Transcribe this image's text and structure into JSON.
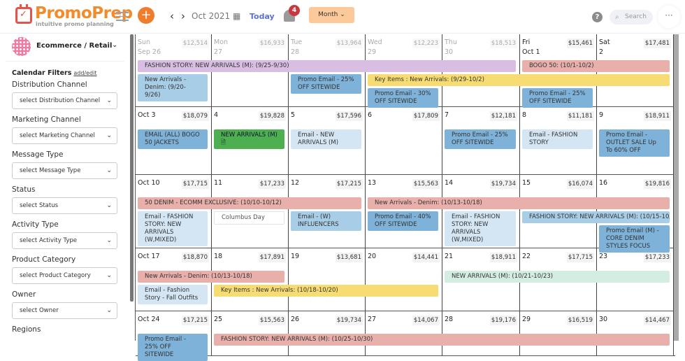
{
  "header": {
    "brand": "PromoPrep",
    "tagline": "intuitive promo planning",
    "prev": "‹",
    "next": "›",
    "month": "Oct 2021",
    "today": "Today",
    "notifications": "4",
    "view": "Month",
    "help": "?",
    "search_placeholder": "Search",
    "more": "···"
  },
  "sidebar": {
    "org": "Ecommerce / Retail",
    "filters_title": "Calendar Filters",
    "filters_link": "add/edit",
    "filters": [
      {
        "label": "Distribution Channel",
        "value": "select Distribution Channel"
      },
      {
        "label": "Marketing Channel",
        "value": "select Marketing Channel"
      },
      {
        "label": "Message Type",
        "value": "select Message Type"
      },
      {
        "label": "Status",
        "value": "select Status"
      },
      {
        "label": "Activity Type",
        "value": "select Activity Type"
      },
      {
        "label": "Product Category",
        "value": "select Product Category"
      },
      {
        "label": "Owner",
        "value": "select Owner"
      },
      {
        "label": "Regions",
        "value": ""
      }
    ]
  },
  "colors": {
    "purple": "#d8bee3",
    "salmon": "#e8afab",
    "yellow": "#f6dc72",
    "blue": "#7eb2d8",
    "lightblue": "#d4e6f3",
    "midblue": "#a8cde6",
    "green": "#4daf4f",
    "mint": "#d3eee0",
    "white": "#ffffff"
  },
  "weeks": [
    {
      "days": [
        {
          "label": "Sun\nSep 26",
          "amount": "$12,514",
          "out": true
        },
        {
          "label": "Mon\n27",
          "amount": "$16,933",
          "out": true
        },
        {
          "label": "Tue\n28",
          "amount": "$13,964",
          "out": true
        },
        {
          "label": "Wed\n29",
          "amount": "$12,223",
          "out": true
        },
        {
          "label": "Thu\n30",
          "amount": "$18,513",
          "out": true
        },
        {
          "label": "Fri\nOct 1",
          "amount": "$15,461"
        },
        {
          "label": "Sat\n2",
          "amount": "$17,481"
        }
      ],
      "events": [
        {
          "title": "FASHION STORY: NEW ARRIVALS (M): (9/25-9/30)",
          "start": 0,
          "span": 5,
          "color": "purple"
        },
        {
          "title": "BOGO 50: (10/1-10/2)",
          "start": 5,
          "span": 2,
          "color": "salmon"
        },
        {
          "title": "New Arrivals - Denim: (9/20-9/26)",
          "start": 0,
          "span": 1,
          "color": "midblue"
        },
        {
          "title": "Promo Email - 25% OFF SITEWIDE",
          "start": 2,
          "span": 1,
          "color": "blue"
        },
        {
          "title": "Key Items : New Arrivals: (9/29-10/2)",
          "start": 3,
          "span": 4,
          "color": "yellow"
        },
        {
          "title": "Promo Email - 30% OFF SITEWIDE",
          "start": 3,
          "span": 1,
          "color": "blue"
        },
        {
          "title": "Promo Email - 25% OFF SITEWIDE",
          "start": 5,
          "span": 1,
          "color": "blue"
        }
      ]
    },
    {
      "days": [
        {
          "label": "Oct 3",
          "amount": "$18,079"
        },
        {
          "label": "4",
          "amount": "$19,828"
        },
        {
          "label": "5",
          "amount": "$17,596"
        },
        {
          "label": "6",
          "amount": "$17,809"
        },
        {
          "label": "7",
          "amount": "$12,181"
        },
        {
          "label": "8",
          "amount": "$11,181"
        },
        {
          "label": "9",
          "amount": "$18,911"
        }
      ],
      "events": [
        {
          "title": "EMAIL (ALL) BOGO 50 JACKETS",
          "start": 0,
          "span": 1,
          "color": "blue"
        },
        {
          "title": "NEW ARRIVALS (M) 🗎",
          "start": 1,
          "span": 1,
          "color": "green"
        },
        {
          "title": "Email - NEW ARRIVALS (M)",
          "start": 2,
          "span": 1,
          "color": "lightblue"
        },
        {
          "title": "Promo Email - 25% OFF SITEWIDE",
          "start": 4,
          "span": 1,
          "color": "blue"
        },
        {
          "title": "Email - FASHION STORY",
          "start": 5,
          "span": 1,
          "color": "lightblue"
        },
        {
          "title": "Promo Email - OUTLET SALE Up To 60% OFF",
          "start": 6,
          "span": 1,
          "color": "blue"
        }
      ]
    },
    {
      "days": [
        {
          "label": "Oct 10",
          "amount": "$17,715"
        },
        {
          "label": "11",
          "amount": "$17,233"
        },
        {
          "label": "12",
          "amount": "$17,215"
        },
        {
          "label": "13",
          "amount": "$15,563"
        },
        {
          "label": "14",
          "amount": "$19,734"
        },
        {
          "label": "15",
          "amount": "$16,074"
        },
        {
          "label": "16",
          "amount": "$19,816"
        }
      ],
      "events": [
        {
          "title": "50 DENIM - ECOMM EXCLUSIVE: (10/10-10/12)",
          "start": 0,
          "span": 3,
          "color": "salmon"
        },
        {
          "title": "New Arrivals - Denim: (10/13-10/18)",
          "start": 3,
          "span": 4,
          "color": "salmon"
        },
        {
          "title": "Email - FASHION STORY: NEW ARRIVALS (W,MIXED)",
          "start": 0,
          "span": 1,
          "color": "lightblue"
        },
        {
          "title": "Columbus Day",
          "start": 1,
          "span": 1,
          "color": "white"
        },
        {
          "title": "Email - (W) INFLUENCERS",
          "start": 2,
          "span": 1,
          "color": "midblue"
        },
        {
          "title": "Promo Email - 40% OFF SITEWIDE",
          "start": 3,
          "span": 1,
          "color": "blue"
        },
        {
          "title": "Email - FASHION STORY: NEW ARRIVALS (W,MIXED)",
          "start": 4,
          "span": 1,
          "color": "lightblue"
        },
        {
          "title": "FASHION STORY: NEW ARRIVALS (M): (10/15-10/16)",
          "start": 5,
          "span": 2,
          "color": "midblue"
        },
        {
          "title": "Promo Email (M) - CORE DENIM STYLES FOCUS",
          "start": 6,
          "span": 1,
          "color": "blue"
        }
      ]
    },
    {
      "days": [
        {
          "label": "Oct 17",
          "amount": "$18,870"
        },
        {
          "label": "18",
          "amount": "$17,891"
        },
        {
          "label": "19",
          "amount": "$13,681"
        },
        {
          "label": "20",
          "amount": "$14,441"
        },
        {
          "label": "21",
          "amount": "$18,911"
        },
        {
          "label": "22",
          "amount": "$17,715"
        },
        {
          "label": "23",
          "amount": "$17,233"
        }
      ],
      "events": [
        {
          "title": "New Arrivals - Denim: (10/13-10/18)",
          "start": 0,
          "span": 2,
          "color": "salmon"
        },
        {
          "title": "NEW ARRIVALS (M): (10/21-10/23)",
          "start": 4,
          "span": 3,
          "color": "mint"
        },
        {
          "title": "Email - Fashion Story - Fall Outfits",
          "start": 0,
          "span": 1,
          "color": "lightblue"
        },
        {
          "title": "Key Items : New Arrivals: (10/18-10/20)",
          "start": 1,
          "span": 3,
          "color": "yellow"
        }
      ]
    },
    {
      "days": [
        {
          "label": "Oct 24",
          "amount": "$17,215"
        },
        {
          "label": "25",
          "amount": "$15,563"
        },
        {
          "label": "26",
          "amount": "$19,734"
        },
        {
          "label": "27",
          "amount": "$14,067"
        },
        {
          "label": "28",
          "amount": "$19,176"
        },
        {
          "label": "29",
          "amount": "$16,519"
        },
        {
          "label": "30",
          "amount": "$14,467"
        }
      ],
      "events": [
        {
          "title": "Promo Email - 25% OFF SITEWIDE",
          "start": 0,
          "span": 1,
          "color": "blue"
        },
        {
          "title": "FASHION STORY: NEW ARRIVALS (M): (10/25-10/30)",
          "start": 1,
          "span": 6,
          "color": "salmon"
        }
      ]
    }
  ]
}
